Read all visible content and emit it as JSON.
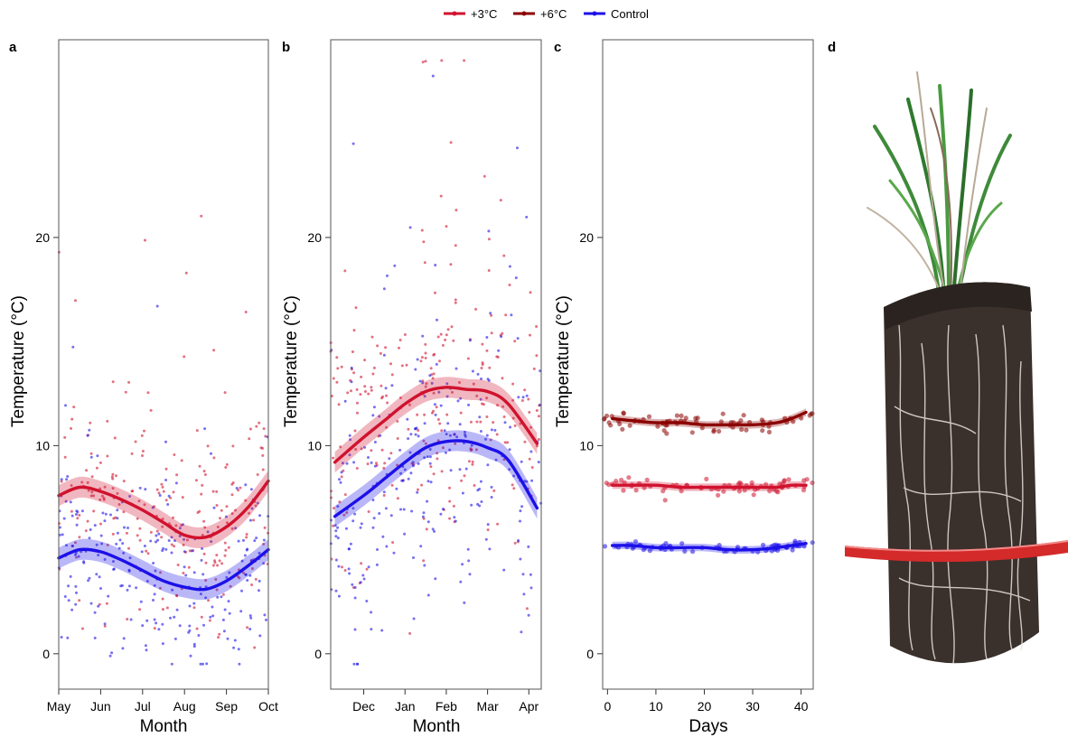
{
  "legend": {
    "items": [
      {
        "label": "+3°C",
        "color": "#d0122e"
      },
      {
        "label": "+6°C",
        "color": "#8b0000"
      },
      {
        "label": "Control",
        "color": "#1c10e8"
      }
    ]
  },
  "photo_panel": {
    "letter": "d"
  },
  "chart_data": [
    {
      "panel_letter": "a",
      "type": "scatter",
      "xlabel": "Month",
      "ylabel": "Temperature (°C)",
      "x_ticks": [
        "May",
        "Jun",
        "Jul",
        "Aug",
        "Sep",
        "Oct"
      ],
      "xlim": [
        0,
        5
      ],
      "y_ticks": [
        "0",
        "10",
        "20"
      ],
      "ylim": [
        -1.7,
        29.5
      ],
      "grid": false,
      "series": [
        {
          "name": "+3°C",
          "color": "#d0122e",
          "x": [
            0,
            0.5,
            1,
            1.5,
            2,
            2.5,
            3,
            3.5,
            4,
            4.5,
            5
          ],
          "y": [
            7.6,
            8.0,
            7.8,
            7.4,
            6.9,
            6.3,
            5.7,
            5.6,
            6.1,
            7.0,
            8.3
          ],
          "scatter_mean": 7.0,
          "scatter_sd": 2.5,
          "scatter_n": 240
        },
        {
          "name": "Control",
          "color": "#1c10e8",
          "x": [
            0,
            0.5,
            1,
            1.5,
            2,
            2.5,
            3,
            3.5,
            4,
            4.5,
            5
          ],
          "y": [
            4.6,
            5.0,
            4.9,
            4.5,
            4.0,
            3.5,
            3.2,
            3.1,
            3.5,
            4.2,
            5.0
          ],
          "scatter_mean": 3.9,
          "scatter_sd": 2.3,
          "scatter_n": 240
        }
      ]
    },
    {
      "panel_letter": "b",
      "type": "scatter",
      "xlabel": "Month",
      "ylabel": "Temperature (°C)",
      "x_ticks": [
        "Dec",
        "Jan",
        "Feb",
        "Mar",
        "Apr"
      ],
      "xlim": [
        -0.8,
        4.3
      ],
      "y_ticks": [
        "0",
        "10",
        "20"
      ],
      "ylim": [
        -1.7,
        29.5
      ],
      "grid": false,
      "series": [
        {
          "name": "+3°C",
          "color": "#d0122e",
          "x": [
            -0.7,
            0,
            0.5,
            1,
            1.5,
            2,
            2.5,
            3,
            3.5,
            4.2
          ],
          "y": [
            9.2,
            10.4,
            11.2,
            12.0,
            12.6,
            12.8,
            12.7,
            12.6,
            12.0,
            10.1
          ],
          "scatter_mean": 12.0,
          "scatter_sd": 3.6,
          "scatter_n": 260
        },
        {
          "name": "Control",
          "color": "#1c10e8",
          "x": [
            -0.7,
            0,
            0.5,
            1,
            1.5,
            2,
            2.5,
            3,
            3.5,
            4.2
          ],
          "y": [
            6.6,
            7.6,
            8.4,
            9.2,
            9.9,
            10.2,
            10.2,
            9.9,
            9.3,
            7.0
          ],
          "scatter_mean": 9.0,
          "scatter_sd": 3.6,
          "scatter_n": 260
        }
      ]
    },
    {
      "panel_letter": "c",
      "type": "scatter",
      "xlabel": "Days",
      "ylabel": "Temperature (°C)",
      "x_ticks": [
        "0",
        "10",
        "20",
        "30",
        "40"
      ],
      "xlim": [
        -1,
        42.5
      ],
      "y_ticks": [
        "0",
        "10",
        "20"
      ],
      "ylim": [
        -1.7,
        29.5
      ],
      "grid": false,
      "series": [
        {
          "name": "+6°C",
          "color": "#8b0000",
          "x": [
            1,
            5,
            10,
            15,
            20,
            25,
            30,
            35,
            38,
            41
          ],
          "y": [
            11.3,
            11.2,
            11.1,
            11.1,
            11.0,
            11.0,
            11.0,
            11.1,
            11.3,
            11.6
          ],
          "scatter_mean": 11.2,
          "scatter_sd": 0.25,
          "scatter_n": 70
        },
        {
          "name": "+3°C",
          "color": "#d0122e",
          "x": [
            1,
            5,
            10,
            15,
            20,
            25,
            30,
            35,
            38,
            41
          ],
          "y": [
            8.1,
            8.1,
            8.1,
            8.0,
            8.0,
            8.0,
            8.0,
            8.0,
            8.1,
            8.1
          ],
          "scatter_mean": 8.1,
          "scatter_sd": 0.2,
          "scatter_n": 70
        },
        {
          "name": "Control",
          "color": "#1c10e8",
          "x": [
            1,
            5,
            10,
            15,
            20,
            25,
            30,
            35,
            38,
            41
          ],
          "y": [
            5.2,
            5.2,
            5.1,
            5.1,
            5.1,
            5.0,
            5.0,
            5.1,
            5.2,
            5.3
          ],
          "scatter_mean": 5.1,
          "scatter_sd": 0.1,
          "scatter_n": 70
        }
      ]
    }
  ]
}
